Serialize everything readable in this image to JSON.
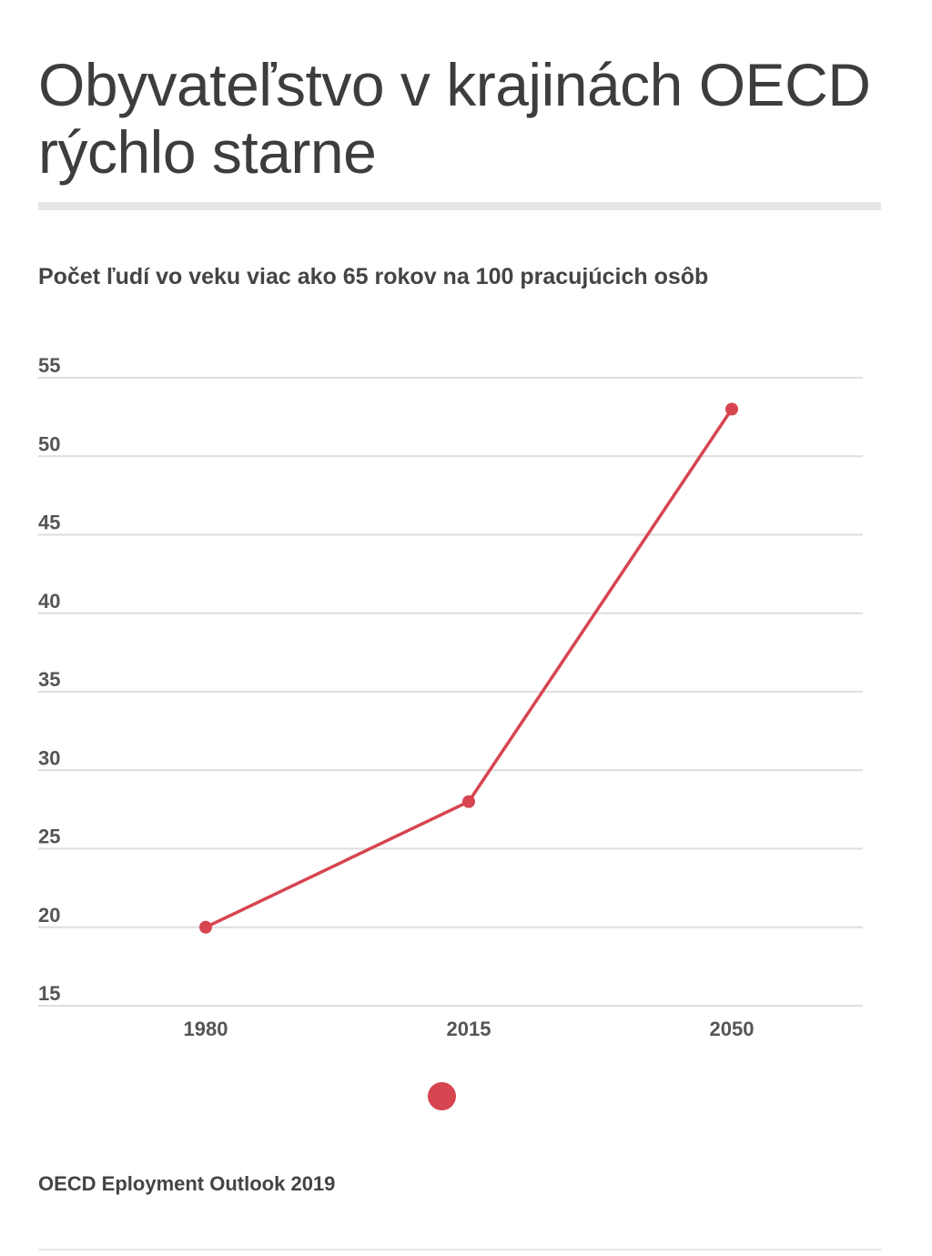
{
  "title": "Obyvateľstvo v krajinách OECD rýchlo starne",
  "subtitle": "Počet ľudí vo veku viac ako 65 rokov na 100 pracujúcich osôb",
  "source": "OECD Eployment Outlook 2019",
  "colors": {
    "series": "#d64550",
    "grid": "#dedede",
    "text": "#3d3d3d"
  },
  "chart_data": {
    "type": "line",
    "categories": [
      "1980",
      "2015",
      "2050"
    ],
    "series": [
      {
        "values": [
          20,
          28,
          53
        ]
      }
    ],
    "yticks": [
      "55",
      "50",
      "45",
      "40",
      "35",
      "30",
      "25",
      "20",
      "15"
    ],
    "ylim": [
      15,
      55
    ],
    "grid": true,
    "legend": "bottom-center"
  }
}
